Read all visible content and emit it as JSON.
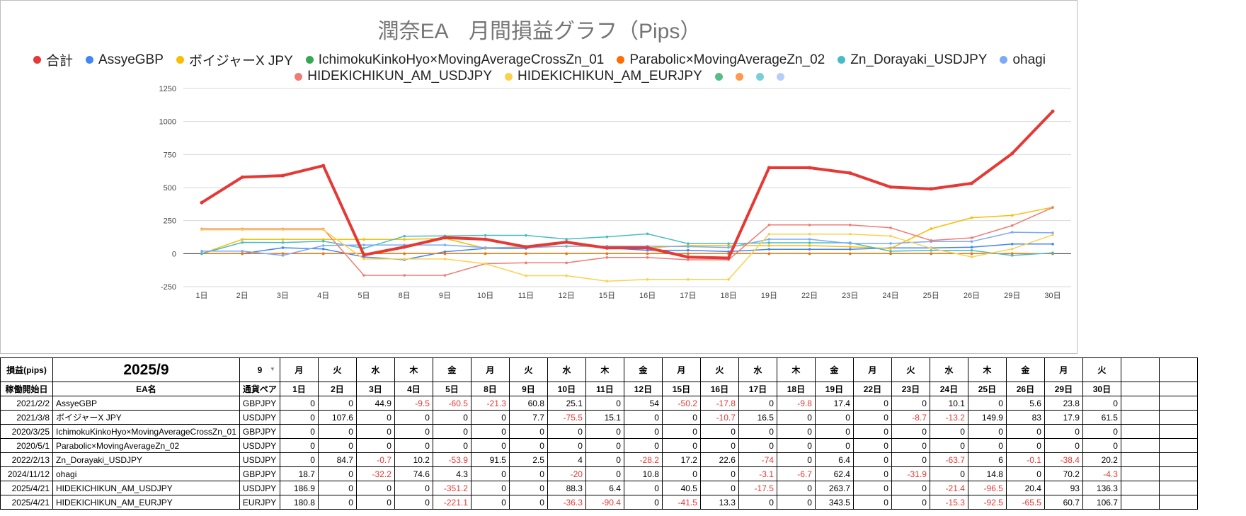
{
  "title": "潤奈EA　月間損益グラフ（Pips）",
  "colors": {
    "合計": "#e53935",
    "AssyeGBP": "#4285f4",
    "ボイジャーX JPY": "#fbbc04",
    "IchimokuKinkoHyo×MovingAverageCrossZn_01": "#34a853",
    "Parabolic×MovingAverageZn_02": "#ff6d01",
    "Zn_Dorayaki_USDJPY": "#46bdc6",
    "ohagi": "#7baaf7",
    "HIDEKICHIKUN_AM_USDJPY": "#f07b72",
    "HIDEKICHIKUN_AM_EURJPY": "#fcd04f"
  },
  "legend": [
    {
      "label": "合計",
      "color": "#e53935"
    },
    {
      "label": "AssyeGBP",
      "color": "#4285f4"
    },
    {
      "label": "ボイジャーX JPY",
      "color": "#fbbc04"
    },
    {
      "label": "IchimokuKinkoHyo×MovingAverageCrossZn_01",
      "color": "#34a853"
    },
    {
      "label": "Parabolic×MovingAverageZn_02",
      "color": "#ff6d01"
    },
    {
      "label": "Zn_Dorayaki_USDJPY",
      "color": "#46bdc6"
    },
    {
      "label": "ohagi",
      "color": "#7baaf7"
    },
    {
      "label": "HIDEKICHIKUN_AM_USDJPY",
      "color": "#f07b72"
    },
    {
      "label": "HIDEKICHIKUN_AM_EURJPY",
      "color": "#fcd04f"
    },
    {
      "label": "",
      "color": "#57bb8a"
    },
    {
      "label": "",
      "color": "#ff994d"
    },
    {
      "label": "",
      "color": "#78d0d7"
    },
    {
      "label": "",
      "color": "#b7cdf7"
    }
  ],
  "chart_data": {
    "type": "line",
    "title": "潤奈EA　月間損益グラフ（Pips）",
    "categories": [
      "1日",
      "2日",
      "3日",
      "4日",
      "5日",
      "8日",
      "9日",
      "10日",
      "11日",
      "12日",
      "15日",
      "16日",
      "17日",
      "18日",
      "19日",
      "22日",
      "23日",
      "24日",
      "25日",
      "26日",
      "29日",
      "30日"
    ],
    "ylim": [
      -250,
      1250
    ],
    "yticks": [
      -250,
      0,
      250,
      500,
      750,
      1000,
      1250
    ],
    "grid": true,
    "legend_position": "top",
    "series": [
      {
        "name": "合計",
        "color": "#e53935",
        "width": 4,
        "values": [
          386.2,
          578.5,
          590.5,
          665.8,
          -10,
          50,
          121,
          109,
          51,
          87,
          43,
          44,
          -26,
          -33,
          650,
          650,
          610,
          504,
          490,
          532,
          758,
          1077
        ]
      },
      {
        "name": "AssyeGBP",
        "color": "#4285f4",
        "width": 1.5,
        "values": [
          0,
          0,
          44.9,
          35.4,
          -25.1,
          -46.4,
          14.4,
          39.5,
          39.5,
          93.5,
          43.3,
          25.5,
          25.5,
          15.7,
          33.1,
          33.1,
          33.1,
          43.2,
          43.2,
          48.8,
          72.6,
          72.6
        ]
      },
      {
        "name": "ボイジャーX JPY",
        "color": "#fbbc04",
        "width": 1.5,
        "values": [
          0,
          107.6,
          107.6,
          107.6,
          107.6,
          107.6,
          115.3,
          39.8,
          54.9,
          54.9,
          54.9,
          44.2,
          60.7,
          60.7,
          60.7,
          60.7,
          52,
          38.8,
          188.7,
          271.7,
          289.6,
          351.1
        ]
      },
      {
        "name": "IchimokuKinkoHyo×MovingAverageCrossZn_01",
        "color": "#34a853",
        "width": 1.5,
        "values": [
          0,
          0,
          0,
          0,
          0,
          0,
          0,
          0,
          0,
          0,
          0,
          0,
          0,
          0,
          0,
          0,
          0,
          0,
          0,
          0,
          0,
          0
        ]
      },
      {
        "name": "Parabolic×MovingAverageZn_02",
        "color": "#ff6d01",
        "width": 1.5,
        "values": [
          0,
          0,
          0,
          0,
          0,
          0,
          0,
          0,
          0,
          0,
          0,
          0,
          0,
          0,
          0,
          0,
          0,
          0,
          0,
          0,
          0,
          0
        ]
      },
      {
        "name": "Zn_Dorayaki_USDJPY",
        "color": "#46bdc6",
        "width": 1.5,
        "values": [
          0,
          84.7,
          84,
          94.2,
          40.3,
          131.8,
          134.3,
          138.3,
          138.3,
          110.1,
          127.3,
          149.9,
          75.9,
          75.9,
          82.3,
          82.3,
          82.3,
          18.6,
          24.6,
          24.5,
          -13.9,
          6.3
        ]
      },
      {
        "name": "ohagi",
        "color": "#7baaf7",
        "width": 1.5,
        "values": [
          18.7,
          18.7,
          -13.5,
          61.1,
          65.4,
          65.4,
          65.4,
          45.4,
          45.4,
          56.2,
          56.2,
          56.2,
          53.1,
          46.4,
          108.8,
          108.8,
          76.9,
          76.9,
          91.7,
          91.7,
          161.9,
          157.6
        ]
      },
      {
        "name": "HIDEKICHIKUN_AM_USDJPY",
        "color": "#f07b72",
        "width": 1.5,
        "values": [
          186.9,
          186.9,
          186.9,
          186.9,
          -164.3,
          -164.3,
          -164.3,
          -76,
          -69.6,
          -69.6,
          -29.1,
          -29.1,
          -46.6,
          -46.6,
          217.1,
          217.1,
          217.1,
          195.7,
          99.2,
          119.6,
          212.6,
          348.9
        ]
      },
      {
        "name": "HIDEKICHIKUN_AM_EURJPY",
        "color": "#fcd04f",
        "width": 1.5,
        "values": [
          180.8,
          180.8,
          180.8,
          180.8,
          -40.3,
          -40.3,
          -40.3,
          -76.6,
          -167,
          -167,
          -208.5,
          -195.2,
          -195.2,
          -195.2,
          148.3,
          148.3,
          148.3,
          133,
          40.5,
          -25,
          35.7,
          142.4
        ]
      }
    ]
  },
  "table": {
    "header1": {
      "label": "損益(pips)",
      "period": "2025/9",
      "month_value": "9",
      "weekdays": [
        "月",
        "火",
        "水",
        "木",
        "金",
        "月",
        "火",
        "水",
        "木",
        "金",
        "月",
        "火",
        "水",
        "木",
        "金",
        "月",
        "火",
        "水",
        "木",
        "金",
        "月",
        "火"
      ]
    },
    "header2": {
      "start": "稼働開始日",
      "name": "EA名",
      "pair": "通貨ペア",
      "days": [
        "1日",
        "2日",
        "3日",
        "4日",
        "5日",
        "8日",
        "9日",
        "10日",
        "11日",
        "12日",
        "15日",
        "16日",
        "17日",
        "18日",
        "19日",
        "22日",
        "23日",
        "24日",
        "25日",
        "26日",
        "29日",
        "30日"
      ]
    },
    "rows": [
      {
        "start": "2021/2/2",
        "name": "AssyeGBP",
        "pair": "GBPJPY",
        "values": [
          "0",
          "0",
          "44.9",
          "-9.5",
          "-60.5",
          "-21.3",
          "60.8",
          "25.1",
          "0",
          "54",
          "-50.2",
          "-17.8",
          "0",
          "-9.8",
          "17.4",
          "0",
          "0",
          "10.1",
          "0",
          "5.6",
          "23.8",
          "0"
        ]
      },
      {
        "start": "2021/3/8",
        "name": "ボイジャーX JPY",
        "pair": "USDJPY",
        "values": [
          "0",
          "107.6",
          "0",
          "0",
          "0",
          "0",
          "7.7",
          "-75.5",
          "15.1",
          "0",
          "0",
          "-10.7",
          "16.5",
          "0",
          "0",
          "0",
          "-8.7",
          "-13.2",
          "149.9",
          "83",
          "17.9",
          "61.5"
        ]
      },
      {
        "start": "2020/3/25",
        "name": "IchimokuKinkoHyo×MovingAverageCrossZn_01",
        "pair": "GBPJPY",
        "values": [
          "0",
          "0",
          "0",
          "0",
          "0",
          "0",
          "0",
          "0",
          "0",
          "0",
          "0",
          "0",
          "0",
          "0",
          "0",
          "0",
          "0",
          "0",
          "0",
          "0",
          "0",
          "0"
        ]
      },
      {
        "start": "2020/5/1",
        "name": "Parabolic×MovingAverageZn_02",
        "pair": "USDJPY",
        "values": [
          "0",
          "0",
          "0",
          "0",
          "0",
          "0",
          "0",
          "0",
          "0",
          "0",
          "0",
          "0",
          "0",
          "0",
          "0",
          "0",
          "0",
          "0",
          "0",
          "0",
          "0",
          "0"
        ]
      },
      {
        "start": "2022/2/13",
        "name": "Zn_Dorayaki_USDJPY",
        "pair": "USDJPY",
        "values": [
          "0",
          "84.7",
          "-0.7",
          "10.2",
          "-53.9",
          "91.5",
          "2.5",
          "4",
          "0",
          "-28.2",
          "17.2",
          "22.6",
          "-74",
          "0",
          "6.4",
          "0",
          "0",
          "-63.7",
          "6",
          "-0.1",
          "-38.4",
          "20.2"
        ]
      },
      {
        "start": "2024/11/12",
        "name": "ohagi",
        "pair": "GBPJPY",
        "values": [
          "18.7",
          "0",
          "-32.2",
          "74.6",
          "4.3",
          "0",
          "0",
          "-20",
          "0",
          "10.8",
          "0",
          "0",
          "-3.1",
          "-6.7",
          "62.4",
          "0",
          "-31.9",
          "0",
          "14.8",
          "0",
          "70.2",
          "-4.3"
        ]
      },
      {
        "start": "2025/4/21",
        "name": "HIDEKICHIKUN_AM_USDJPY",
        "pair": "USDJPY",
        "values": [
          "186.9",
          "0",
          "0",
          "0",
          "-351.2",
          "0",
          "0",
          "88.3",
          "6.4",
          "0",
          "40.5",
          "0",
          "-17.5",
          "0",
          "263.7",
          "0",
          "0",
          "-21.4",
          "-96.5",
          "20.4",
          "93",
          "136.3"
        ]
      },
      {
        "start": "2025/4/21",
        "name": "HIDEKICHIKUN_AM_EURJPY",
        "pair": "EURJPY",
        "values": [
          "180.8",
          "0",
          "0",
          "0",
          "-221.1",
          "0",
          "0",
          "-36.3",
          "-90.4",
          "0",
          "-41.5",
          "13.3",
          "0",
          "0",
          "343.5",
          "0",
          "0",
          "-15.3",
          "-92.5",
          "-65.5",
          "60.7",
          "106.7"
        ]
      }
    ]
  }
}
